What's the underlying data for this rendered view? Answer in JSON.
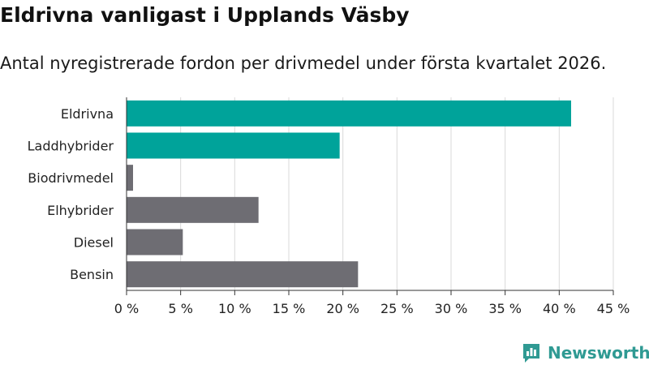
{
  "chart_data": {
    "type": "bar",
    "orientation": "horizontal",
    "title": "Eldrivna vanligast i Upplands Väsby",
    "subtitle": "Antal nyregistrerade fordon per drivmedel under första kvartalet 2026.",
    "categories": [
      "Eldrivna",
      "Laddhybrider",
      "Biodrivmedel",
      "Elhybrider",
      "Diesel",
      "Bensin"
    ],
    "values": [
      41.1,
      19.7,
      0.6,
      12.2,
      5.2,
      21.4
    ],
    "unit": "%",
    "xlim": [
      0,
      45
    ],
    "ticks": [
      0,
      5,
      10,
      15,
      20,
      25,
      30,
      35,
      40,
      45
    ],
    "tick_labels": [
      "0 %",
      "5 %",
      "10 %",
      "15 %",
      "20 %",
      "25 %",
      "30 %",
      "35 %",
      "40 %",
      "45 %"
    ],
    "grid": true,
    "colors": {
      "highlight": "#00a39a",
      "default": "#6e6d73",
      "grid": "#d9d9d9",
      "axis": "#333333"
    },
    "highlighted": [
      "Eldrivna",
      "Laddhybrider"
    ]
  },
  "brand": {
    "name": "Newsworthy",
    "icon": "newsworthy-logo-icon"
  }
}
